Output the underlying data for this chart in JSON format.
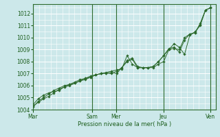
{
  "title": "",
  "xlabel": "Pression niveau de la mer( hPa )",
  "ylabel": "",
  "bg_color": "#cce8ea",
  "grid_color": "#ffffff",
  "line_color": "#2d6a2d",
  "marker_color": "#2d6a2d",
  "ylim": [
    1004,
    1012.8
  ],
  "yticks": [
    1004,
    1005,
    1006,
    1007,
    1008,
    1009,
    1010,
    1011,
    1012
  ],
  "day_labels": [
    "Mar",
    "Sam",
    "Mer",
    "Jeu",
    "Ven"
  ],
  "day_positions": [
    0,
    60,
    84,
    132,
    180
  ],
  "xlim": [
    0,
    185
  ],
  "series": [
    [
      1004.2,
      1004.7,
      1005.0,
      1005.3,
      1005.6,
      1005.8,
      1006.0,
      1006.1,
      1006.3,
      1006.5,
      1006.6,
      1006.8,
      1006.9,
      1007.0,
      1007.05,
      1007.1,
      1007.0,
      1007.5,
      1008.1,
      1008.3,
      1007.6,
      1007.5,
      1007.5,
      1007.6,
      1008.0,
      1008.5,
      1009.1,
      1009.2,
      1008.8,
      1009.8,
      1010.3,
      1010.4,
      1011.1,
      1012.3,
      1012.5
    ],
    [
      1004.4,
      1004.9,
      1005.2,
      1005.4,
      1005.5,
      1005.6,
      1005.9,
      1006.0,
      1006.2,
      1006.4,
      1006.5,
      1006.7,
      1006.9,
      1007.0,
      1007.1,
      1007.2,
      1007.3,
      1007.4,
      1008.5,
      1007.8,
      1007.5,
      1007.5,
      1007.5,
      1007.5,
      1007.8,
      1008.0,
      1009.0,
      1009.1,
      1009.0,
      1010.0,
      1010.3,
      1010.4,
      1011.2,
      1012.3,
      1012.5
    ],
    [
      1004.3,
      1004.6,
      1004.9,
      1005.1,
      1005.4,
      1005.7,
      1005.9,
      1006.1,
      1006.2,
      1006.4,
      1006.6,
      1006.7,
      1006.9,
      1007.0,
      1007.05,
      1007.0,
      1007.2,
      1007.5,
      1008.0,
      1008.2,
      1007.5,
      1007.5,
      1007.5,
      1007.6,
      1008.0,
      1008.5,
      1009.0,
      1009.5,
      1009.2,
      1008.6,
      1010.2,
      1010.5,
      1011.0,
      1012.3,
      1012.5
    ]
  ],
  "n_points": 35
}
